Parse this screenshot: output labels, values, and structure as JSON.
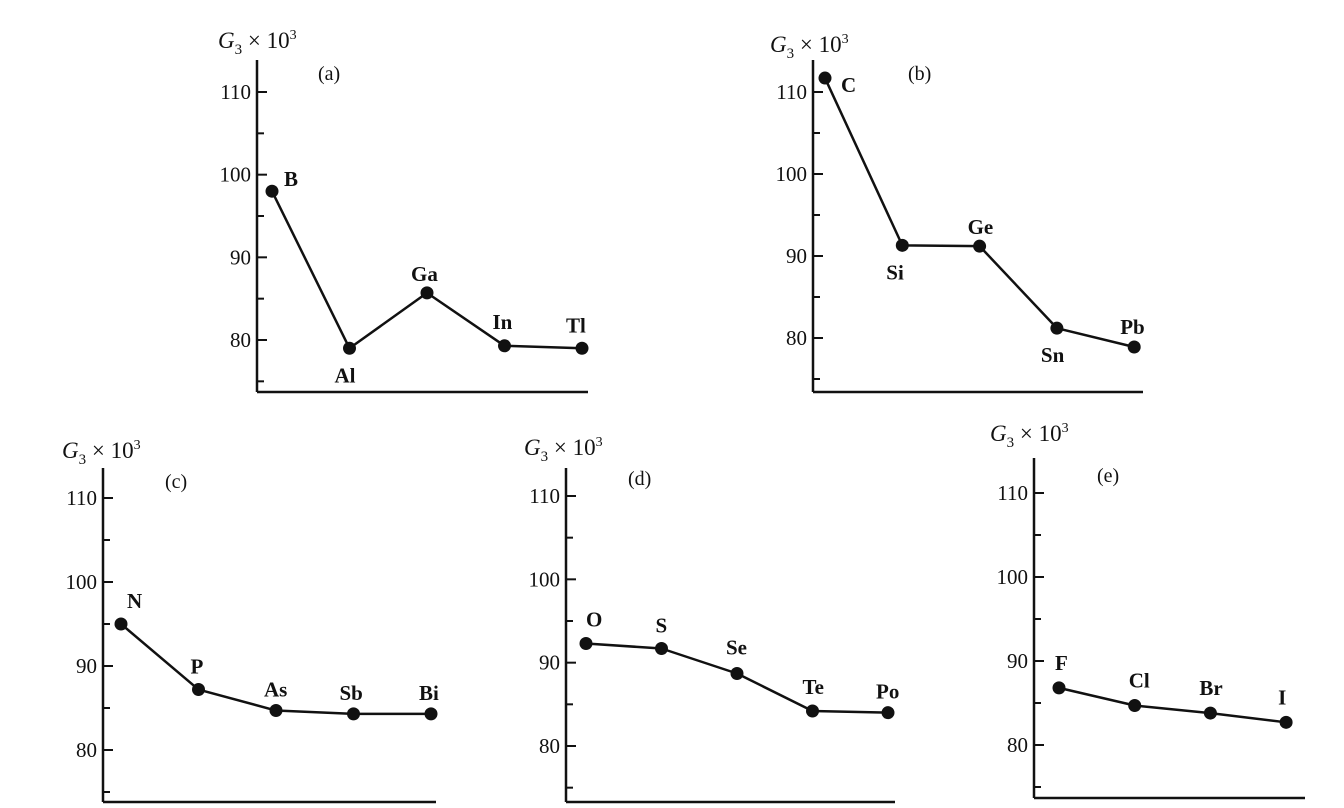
{
  "chart_data": [
    {
      "type": "line",
      "panel_label": "(a)",
      "ylabel": {
        "var": "G",
        "sub": "3",
        "rest": " × 10",
        "sup": "3"
      },
      "ylim": [
        73,
        113
      ],
      "yticks": [
        80,
        90,
        100,
        110
      ],
      "categories": [
        "B",
        "Al",
        "Ga",
        "In",
        "Tl"
      ],
      "values": [
        98,
        79,
        85.7,
        79.3,
        79
      ]
    },
    {
      "type": "line",
      "panel_label": "(b)",
      "ylabel": {
        "var": "G",
        "sub": "3",
        "rest": " × 10",
        "sup": "3"
      },
      "ylim": [
        73,
        114
      ],
      "yticks": [
        80,
        90,
        100,
        110
      ],
      "categories": [
        "C",
        "Si",
        "Ge",
        "Sn",
        "Pb"
      ],
      "values": [
        111.7,
        91.3,
        91.2,
        81.2,
        78.9
      ]
    },
    {
      "type": "line",
      "panel_label": "(c)",
      "ylabel": {
        "var": "G",
        "sub": "3",
        "rest": " × 10",
        "sup": "3"
      },
      "ylim": [
        73,
        114
      ],
      "yticks": [
        80,
        90,
        100,
        110
      ],
      "categories": [
        "N",
        "P",
        "As",
        "Sb",
        "Bi"
      ],
      "values": [
        95,
        87.2,
        84.7,
        84.3,
        84.3
      ]
    },
    {
      "type": "line",
      "panel_label": "(d)",
      "ylabel": {
        "var": "G",
        "sub": "3",
        "rest": " × 10",
        "sup": "3"
      },
      "ylim": [
        73,
        114
      ],
      "yticks": [
        80,
        90,
        100,
        110
      ],
      "categories": [
        "O",
        "S",
        "Se",
        "Te",
        "Po"
      ],
      "values": [
        92.3,
        91.7,
        88.7,
        84.2,
        84
      ]
    },
    {
      "type": "line",
      "panel_label": "(e)",
      "ylabel": {
        "var": "G",
        "sub": "3",
        "rest": " × 10",
        "sup": "3"
      },
      "ylim": [
        73,
        114
      ],
      "yticks": [
        80,
        90,
        100,
        110
      ],
      "categories": [
        "F",
        "Cl",
        "Br",
        "I"
      ],
      "values": [
        86.8,
        84.7,
        83.8,
        82.7
      ]
    }
  ]
}
